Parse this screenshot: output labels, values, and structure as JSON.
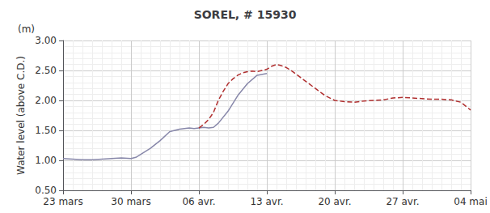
{
  "chart_data": {
    "type": "line",
    "title": "SOREL, # 15930",
    "ylabel": "Water level (above C.D.)",
    "annotations": [
      "(m)"
    ],
    "xlim": [
      0,
      42
    ],
    "xticks": [
      {
        "value": 0,
        "label": "23 mars"
      },
      {
        "value": 7,
        "label": "30 mars"
      },
      {
        "value": 14,
        "label": "06 avr."
      },
      {
        "value": 21,
        "label": "13 avr."
      },
      {
        "value": 28,
        "label": "20 avr."
      },
      {
        "value": 35,
        "label": "27 avr."
      },
      {
        "value": 42,
        "label": "04 mai"
      }
    ],
    "ylim": [
      0.5,
      3.0
    ],
    "yticks": [
      {
        "value": 0.5,
        "label": "0.50"
      },
      {
        "value": 1.0,
        "label": "1.00"
      },
      {
        "value": 1.5,
        "label": "1.50"
      },
      {
        "value": 2.0,
        "label": "2.00"
      },
      {
        "value": 2.5,
        "label": "2.50"
      },
      {
        "value": 3.0,
        "label": "3.00"
      }
    ],
    "grid": true,
    "series": [
      {
        "color": "#8888aa",
        "line_style": "solid",
        "x": [
          0,
          1,
          2,
          3,
          4,
          5,
          6,
          7,
          7.5,
          8,
          9,
          10,
          11,
          12,
          13,
          13.5,
          14,
          14.5,
          15,
          15.5,
          16,
          17,
          18,
          19,
          20,
          21
        ],
        "values": [
          1.03,
          1.02,
          1.01,
          1.01,
          1.02,
          1.03,
          1.04,
          1.03,
          1.05,
          1.1,
          1.2,
          1.33,
          1.48,
          1.52,
          1.54,
          1.53,
          1.54,
          1.55,
          1.54,
          1.55,
          1.62,
          1.82,
          2.08,
          2.28,
          2.42,
          2.45
        ]
      },
      {
        "color": "#b03030",
        "line_style": "dashed",
        "x": [
          14,
          14.5,
          15,
          15.5,
          16,
          16.5,
          17,
          17.5,
          18,
          18.5,
          19,
          19.5,
          20,
          20.5,
          21,
          21.5,
          22,
          22.5,
          23,
          23.5,
          24,
          24.5,
          25,
          26,
          27,
          28,
          29,
          30,
          31,
          32,
          33,
          34,
          35,
          36,
          37,
          38,
          39,
          40,
          41,
          42
        ],
        "values": [
          1.54,
          1.6,
          1.68,
          1.8,
          2.0,
          2.15,
          2.28,
          2.36,
          2.42,
          2.46,
          2.48,
          2.49,
          2.48,
          2.5,
          2.52,
          2.57,
          2.6,
          2.58,
          2.55,
          2.5,
          2.44,
          2.38,
          2.32,
          2.2,
          2.08,
          2.0,
          1.98,
          1.97,
          1.99,
          2.0,
          2.01,
          2.04,
          2.05,
          2.04,
          2.03,
          2.02,
          2.02,
          2.01,
          1.97,
          1.84
        ]
      }
    ]
  }
}
